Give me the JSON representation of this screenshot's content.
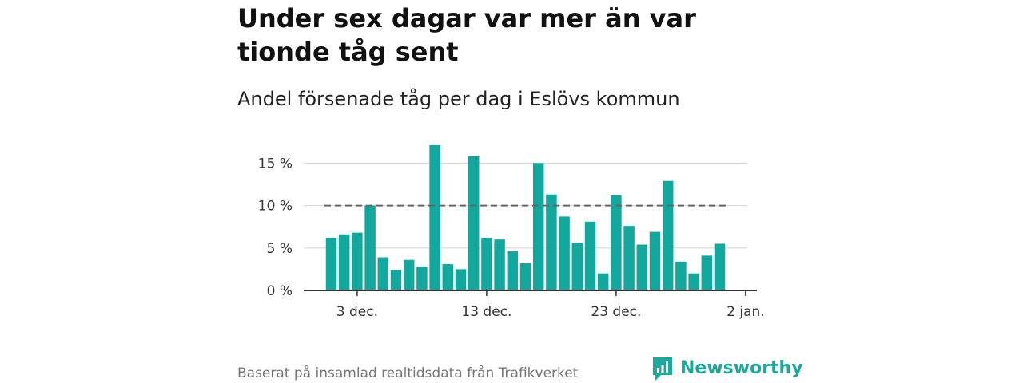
{
  "header": {
    "title": "Under sex dagar var mer än var tionde tåg sent",
    "subtitle": "Andel försenade tåg per dag i Eslövs kommun"
  },
  "footer": {
    "source": "Baserat på insamlad realtidsdata från Trafikverket",
    "brand": "Newsworthy"
  },
  "colors": {
    "bar": "#13a89e",
    "reference_line": "#666666",
    "grid": "#d9d9d9",
    "axis": "#333333",
    "brand": "#1ca89a"
  },
  "chart_data": {
    "type": "bar",
    "x": [
      "2023-12-01",
      "2023-12-02",
      "2023-12-03",
      "2023-12-04",
      "2023-12-05",
      "2023-12-06",
      "2023-12-07",
      "2023-12-08",
      "2023-12-09",
      "2023-12-10",
      "2023-12-11",
      "2023-12-12",
      "2023-12-13",
      "2023-12-14",
      "2023-12-15",
      "2023-12-16",
      "2023-12-17",
      "2023-12-18",
      "2023-12-19",
      "2023-12-20",
      "2023-12-21",
      "2023-12-22",
      "2023-12-23",
      "2023-12-24",
      "2023-12-25",
      "2023-12-26",
      "2023-12-27",
      "2023-12-28",
      "2023-12-29",
      "2023-12-30",
      "2023-12-31"
    ],
    "values": [
      6.2,
      6.6,
      6.8,
      10.0,
      3.9,
      2.4,
      3.6,
      2.8,
      17.1,
      3.1,
      2.5,
      15.8,
      6.2,
      6.0,
      4.6,
      3.2,
      15.0,
      11.3,
      8.7,
      5.6,
      8.1,
      2.0,
      11.2,
      7.6,
      5.4,
      6.9,
      12.9,
      3.4,
      2.0,
      4.1,
      5.5
    ],
    "reference_line": {
      "value": 10,
      "style": "dashed"
    },
    "yticks": [
      "0 %",
      "5 %",
      "10 %",
      "15 %"
    ],
    "ytick_values": [
      0,
      5,
      10,
      15
    ],
    "xticks": [
      "3 dec.",
      "13 dec.",
      "23 dec.",
      "2 jan."
    ],
    "xtick_values": [
      "2023-12-03",
      "2023-12-13",
      "2023-12-23",
      "2024-01-02"
    ],
    "ylim": [
      0,
      17.1
    ],
    "grid": true,
    "xlabel": "",
    "ylabel": ""
  }
}
